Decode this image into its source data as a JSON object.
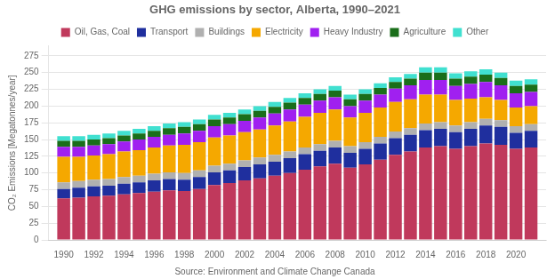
{
  "chart_data": {
    "type": "bar",
    "title": "GHG emissions by sector, Alberta, 1990–2021",
    "ylabel": "CO₂ Emissions [Megatonnes/year]",
    "annotations": [
      "Source: Environment and Climate Change Canada"
    ],
    "stacked": true,
    "grid": true,
    "legend": "top",
    "x": [
      1990,
      1991,
      1992,
      1993,
      1994,
      1995,
      1996,
      1997,
      1998,
      1999,
      2000,
      2001,
      2002,
      2003,
      2004,
      2005,
      2006,
      2007,
      2008,
      2009,
      2010,
      2011,
      2012,
      2013,
      2014,
      2015,
      2016,
      2017,
      2018,
      2019,
      2020,
      2021
    ],
    "series": [
      {
        "name": "Oil, Gas, Coal",
        "color": "#c0395c",
        "values": [
          62,
          63,
          65,
          66,
          68,
          70,
          72,
          74,
          73,
          76,
          82,
          85,
          89,
          92,
          96,
          100,
          105,
          110,
          114,
          108,
          113,
          120,
          127,
          132,
          138,
          140,
          136,
          140,
          144,
          142,
          136,
          138
        ]
      },
      {
        "name": "Transport",
        "color": "#1f2f9e",
        "values": [
          14,
          15,
          15,
          15,
          16,
          16,
          17,
          17,
          17,
          18,
          19,
          19,
          20,
          21,
          21,
          22,
          23,
          23,
          24,
          22,
          23,
          24,
          25,
          25,
          26,
          26,
          25,
          26,
          27,
          27,
          24,
          25
        ]
      },
      {
        "name": "Buildings",
        "color": "#b0b0b0",
        "values": [
          10,
          10,
          10,
          10,
          10,
          10,
          10,
          10,
          10,
          10,
          10,
          10,
          10,
          10,
          10,
          10,
          10,
          10,
          10,
          10,
          10,
          10,
          10,
          10,
          10,
          10,
          10,
          10,
          10,
          10,
          10,
          10
        ]
      },
      {
        "name": "Electricity",
        "color": "#f5a800",
        "values": [
          38,
          36,
          36,
          37,
          38,
          38,
          39,
          40,
          42,
          42,
          42,
          42,
          42,
          42,
          44,
          45,
          46,
          47,
          47,
          43,
          44,
          44,
          44,
          43,
          43,
          41,
          38,
          35,
          32,
          30,
          28,
          27
        ]
      },
      {
        "name": "Heavy Industry",
        "color": "#a020f0",
        "values": [
          15,
          15,
          15,
          15,
          15,
          16,
          16,
          16,
          17,
          17,
          17,
          17,
          17,
          18,
          18,
          18,
          18,
          18,
          18,
          17,
          18,
          19,
          20,
          21,
          22,
          22,
          21,
          22,
          23,
          22,
          21,
          21
        ]
      },
      {
        "name": "Agriculture",
        "color": "#1a6e1a",
        "values": [
          9,
          9,
          9,
          9,
          9,
          9,
          9,
          10,
          10,
          10,
          10,
          10,
          10,
          10,
          10,
          10,
          10,
          10,
          10,
          10,
          10,
          10,
          10,
          10,
          11,
          11,
          11,
          11,
          11,
          11,
          11,
          11
        ]
      },
      {
        "name": "Other",
        "color": "#40e0d0",
        "values": [
          7,
          7,
          7,
          7,
          7,
          7,
          7,
          7,
          7,
          7,
          7,
          7,
          7,
          7,
          7,
          7,
          7,
          7,
          7,
          7,
          7,
          7,
          7,
          7,
          8,
          8,
          8,
          8,
          8,
          8,
          8,
          8
        ]
      }
    ],
    "xlim": [
      1989,
      2022
    ],
    "xticks": [
      1990,
      1992,
      1994,
      1996,
      1998,
      2000,
      2002,
      2004,
      2006,
      2008,
      2010,
      2012,
      2014,
      2016,
      2018,
      2020
    ],
    "ylim": [
      0,
      290
    ],
    "yticks": [
      0,
      25,
      50,
      75,
      100,
      125,
      150,
      175,
      200,
      225,
      250,
      275
    ]
  }
}
